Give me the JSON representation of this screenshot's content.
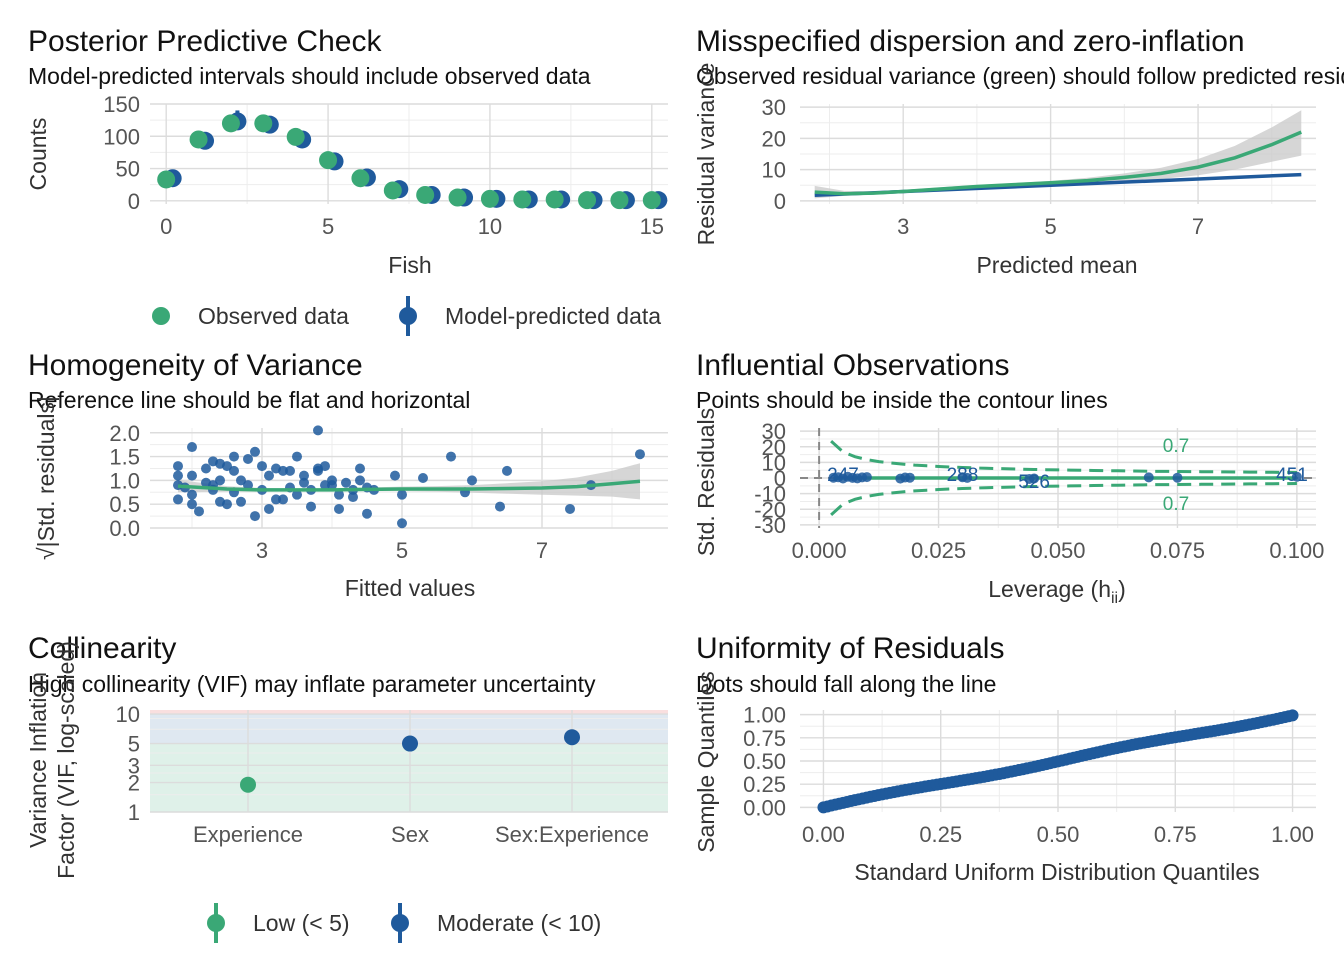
{
  "colors": {
    "green": "#3aa876",
    "blue": "#1f5a9c",
    "band": "#c8c8c8",
    "dash": "#888888"
  },
  "chart_data": [
    {
      "type": "scatter",
      "title": "Posterior Predictive Check",
      "subtitle": "Model-predicted intervals should include observed data",
      "xlabel": "Fish",
      "ylabel": "Counts",
      "xlim": [
        -0.5,
        15.5
      ],
      "ylim": [
        -5,
        150
      ],
      "xticks": [
        "0",
        "5",
        "10",
        "15"
      ],
      "yticks": [
        "0",
        "50",
        "100",
        "150"
      ],
      "legend": {
        "placement": "bottom",
        "items": [
          "Observed data",
          "Model-predicted data"
        ]
      },
      "series": [
        {
          "name": "Observed data",
          "x": [
            0,
            1,
            2,
            3,
            4,
            5,
            6,
            7,
            8,
            9,
            10,
            11,
            12,
            13,
            14,
            15
          ],
          "values": [
            33,
            95,
            120,
            120,
            99,
            63,
            35,
            16,
            9,
            5,
            3,
            2,
            2,
            1,
            1,
            1
          ]
        },
        {
          "name": "Model-predicted data",
          "x": [
            0,
            1,
            2,
            3,
            4,
            5,
            6,
            7,
            8,
            9,
            10,
            11,
            12,
            13,
            14,
            15
          ],
          "values": [
            35,
            93,
            123,
            118,
            95,
            61,
            36,
            18,
            9,
            5,
            3,
            2,
            2,
            1,
            1,
            1
          ],
          "err_low": [
            28,
            85,
            110,
            110,
            88,
            55,
            30,
            13,
            6,
            3,
            1,
            1,
            1,
            0,
            0,
            0
          ],
          "err_high": [
            42,
            101,
            140,
            126,
            102,
            67,
            42,
            23,
            12,
            7,
            4,
            3,
            3,
            2,
            2,
            2
          ]
        }
      ]
    },
    {
      "type": "line",
      "title": "Misspecified dispersion and zero-inflation",
      "subtitle": "Observed residual variance (green) should follow predicted residual variance (blue)",
      "xlabel": "Predicted mean",
      "ylabel": "Residual variance",
      "xlim": [
        1.6,
        8.6
      ],
      "ylim": [
        -1,
        31
      ],
      "xticks": [
        "3",
        "5",
        "7"
      ],
      "yticks": [
        "0",
        "10",
        "20",
        "30"
      ],
      "series": [
        {
          "name": "observed",
          "x": [
            1.8,
            2.2,
            2.6,
            3.0,
            3.5,
            4.0,
            4.5,
            5.0,
            5.5,
            6.0,
            6.5,
            7.0,
            7.5,
            8.0,
            8.4
          ],
          "values": [
            2.8,
            2.3,
            2.5,
            3.0,
            3.8,
            4.6,
            5.2,
            5.8,
            6.5,
            7.5,
            8.8,
            10.8,
            13.8,
            18.0,
            22.0
          ],
          "band_low": [
            0.8,
            1.6,
            2.0,
            2.5,
            3.3,
            4.1,
            4.7,
            5.2,
            5.6,
            6.2,
            7.0,
            8.2,
            10.0,
            12.5,
            14.5
          ],
          "band_high": [
            4.8,
            3.2,
            3.1,
            3.5,
            4.3,
            5.1,
            5.7,
            6.4,
            7.4,
            8.8,
            10.6,
            13.4,
            17.6,
            23.5,
            29.0
          ]
        },
        {
          "name": "predicted",
          "x": [
            1.8,
            8.4
          ],
          "values": [
            1.8,
            8.4
          ]
        }
      ]
    },
    {
      "type": "scatter",
      "title": "Homogeneity of Variance",
      "subtitle": "Reference line should be flat and horizontal",
      "xlabel": "Fitted values",
      "ylabel": "√|Std. residuals|",
      "xlim": [
        1.4,
        8.8
      ],
      "ylim": [
        0,
        2.1
      ],
      "xticks": [
        "3",
        "5",
        "7"
      ],
      "yticks": [
        "0.0",
        "0.5",
        "1.0",
        "1.5",
        "2.0"
      ],
      "series": [
        {
          "name": "points",
          "x": [
            1.8,
            1.8,
            1.8,
            1.8,
            1.9,
            2.0,
            2.0,
            2.0,
            2.2,
            2.3,
            2.3,
            2.4,
            2.4,
            2.5,
            2.6,
            2.6,
            2.7,
            2.8,
            2.9,
            3.0,
            3.1,
            3.2,
            3.3,
            3.4,
            3.5,
            3.6,
            3.7,
            3.8,
            3.9,
            4.0,
            4.1,
            4.2,
            4.3,
            4.4,
            4.5,
            4.6,
            5.0,
            5.3,
            5.7,
            6.0,
            6.5,
            7.4,
            7.7,
            8.4,
            2.0,
            2.2,
            2.4,
            2.6,
            2.8,
            3.0,
            3.2,
            3.4,
            3.6,
            3.8,
            4.0,
            4.4,
            2.1,
            2.5,
            2.9,
            3.3,
            3.7,
            4.1,
            4.5,
            2.3,
            2.7,
            3.1,
            3.5,
            3.9,
            4.3,
            4.9,
            5.9,
            6.4,
            3.8,
            5.0
          ],
          "values": [
            1.3,
            1.1,
            0.9,
            0.6,
            0.85,
            1.1,
            0.5,
            0.7,
            0.95,
            1.4,
            0.8,
            1.0,
            0.55,
            1.3,
            0.75,
            1.5,
            1.0,
            0.9,
            1.6,
            0.8,
            1.1,
            0.6,
            1.2,
            0.85,
            1.5,
            0.95,
            0.8,
            1.2,
            1.3,
            0.9,
            0.7,
            0.95,
            0.8,
            1.0,
            0.85,
            0.8,
            0.7,
            1.05,
            1.5,
            1.0,
            1.2,
            0.4,
            0.9,
            1.55,
            1.7,
            1.25,
            1.35,
            1.2,
            1.45,
            1.3,
            1.25,
            1.2,
            1.1,
            1.25,
            1.0,
            1.25,
            0.35,
            0.5,
            0.25,
            0.6,
            0.45,
            0.4,
            0.3,
            0.9,
            0.55,
            0.4,
            0.7,
            0.9,
            0.65,
            1.1,
            0.75,
            0.45,
            2.05,
            0.1
          ]
        },
        {
          "name": "loess",
          "x": [
            1.8,
            2.5,
            3.0,
            3.5,
            4.0,
            4.5,
            5.0,
            5.5,
            6.0,
            6.5,
            7.0,
            7.5,
            8.0,
            8.4
          ],
          "values": [
            0.88,
            0.82,
            0.8,
            0.8,
            0.8,
            0.81,
            0.82,
            0.82,
            0.82,
            0.83,
            0.84,
            0.87,
            0.93,
            0.98
          ],
          "band_low": [
            0.75,
            0.76,
            0.76,
            0.77,
            0.77,
            0.77,
            0.77,
            0.76,
            0.74,
            0.72,
            0.7,
            0.68,
            0.66,
            0.6
          ],
          "band_high": [
            1.01,
            0.88,
            0.84,
            0.83,
            0.83,
            0.85,
            0.87,
            0.88,
            0.9,
            0.94,
            0.98,
            1.06,
            1.2,
            1.36
          ]
        }
      ]
    },
    {
      "type": "scatter",
      "title": "Influential Observations",
      "subtitle": "Points should be inside the contour lines",
      "xlabel": "Leverage (hii)",
      "ylabel": "Std. Residuals",
      "xlim": [
        -0.004,
        0.104
      ],
      "ylim": [
        -32,
        32
      ],
      "xticks": [
        "0.000",
        "0.025",
        "0.050",
        "0.075",
        "0.100"
      ],
      "yticks": [
        "-30",
        "-20",
        "-10",
        "0",
        "10",
        "20",
        "30"
      ],
      "annotations": [
        "0.7",
        "0.7",
        "247",
        "288",
        "526",
        "451"
      ],
      "series": [
        {
          "name": "points",
          "x": [
            0.003,
            0.004,
            0.005,
            0.006,
            0.007,
            0.008,
            0.009,
            0.01,
            0.017,
            0.018,
            0.019,
            0.03,
            0.031,
            0.044,
            0.045,
            0.069,
            0.075,
            0.1
          ],
          "values": [
            0.2,
            0.5,
            -0.3,
            0.8,
            0.1,
            -0.2,
            0.4,
            0.6,
            -0.4,
            0.3,
            0.2,
            0.5,
            0.1,
            -0.6,
            -0.3,
            0.4,
            0.2,
            0.8
          ]
        },
        {
          "name": "loess",
          "x": [
            0.003,
            0.1
          ],
          "values": [
            0.0,
            0.0
          ]
        }
      ]
    },
    {
      "type": "scatter",
      "title": "Collinearity",
      "subtitle": "High collinearity (VIF) may inflate parameter uncertainty",
      "xlabel": "",
      "ylabel": "Variance Inflation Factor (VIF, log-scaled)",
      "categories": [
        "Experience",
        "Sex",
        "Sex:Experience"
      ],
      "values": [
        1.9,
        5.0,
        5.8
      ],
      "ylim": [
        1,
        11
      ],
      "yticks": [
        "1",
        "2",
        "3",
        "5",
        "10"
      ],
      "legend": {
        "placement": "bottom",
        "items": [
          "Low (< 5)",
          "Moderate (< 10)"
        ]
      }
    },
    {
      "type": "scatter",
      "title": "Uniformity of Residuals",
      "subtitle": "Dots should fall along the line",
      "xlabel": "Standard Uniform Distribution Quantiles",
      "ylabel": "Sample Quantiles",
      "xlim": [
        -0.05,
        1.05
      ],
      "ylim": [
        -0.05,
        1.05
      ],
      "xticks": [
        "0.00",
        "0.25",
        "0.50",
        "0.75",
        "1.00"
      ],
      "yticks": [
        "0.00",
        "0.25",
        "0.50",
        "0.75",
        "1.00"
      ]
    }
  ]
}
